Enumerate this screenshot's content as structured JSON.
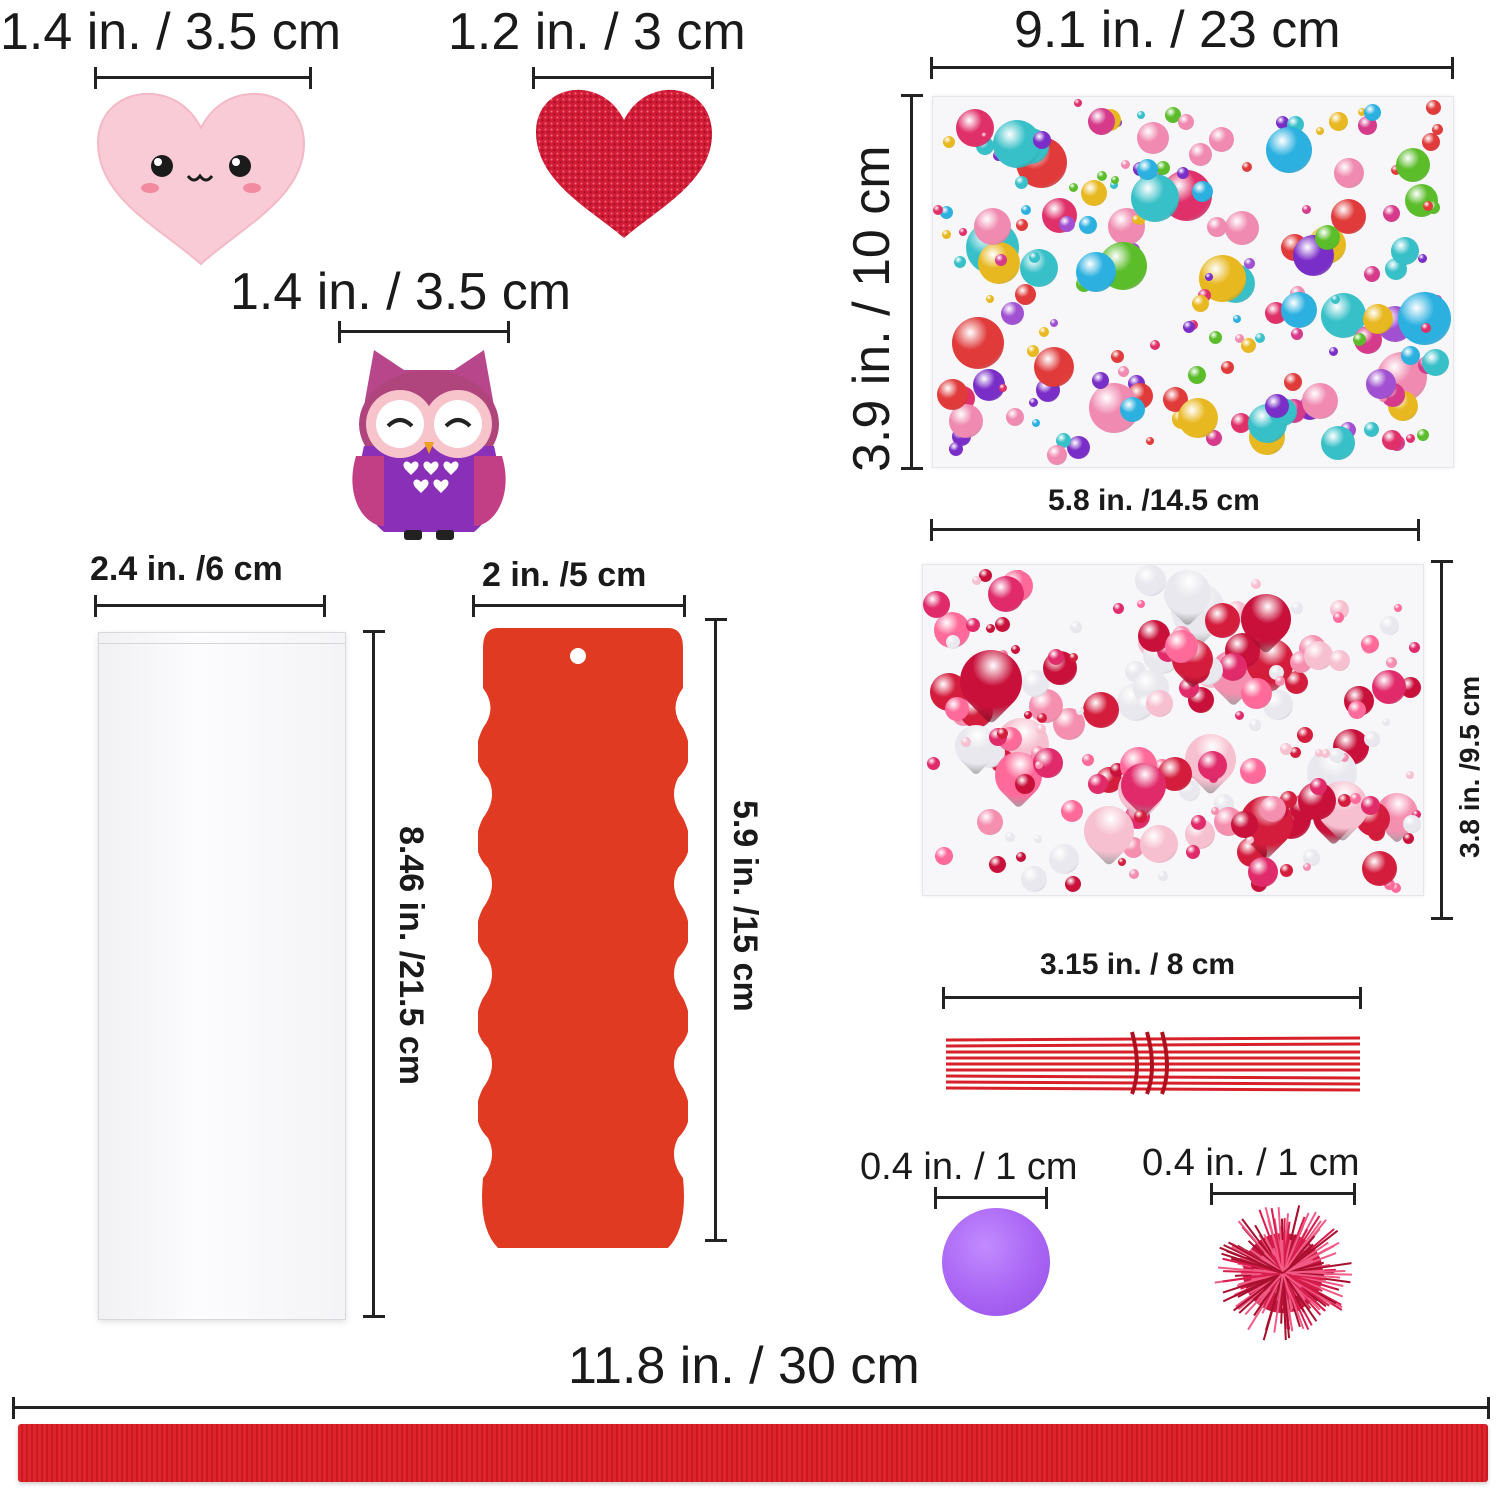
{
  "dimensions": {
    "pink_heart": "1.4 in. / 3.5 cm",
    "red_heart": "1.2 in. / 3 cm",
    "owl": "1.4 in. / 3.5 cm",
    "gem_sheet_large_width": "9.1 in. / 23 cm",
    "gem_sheet_large_height": "3.9 in. / 10 cm",
    "heart_gem_sheet_width": "5.8 in. /14.5 cm",
    "heart_gem_sheet_height": "3.8 in. /9.5 cm",
    "bag_width": "2.4 in. /6 cm",
    "bag_height": "8.46 in. /21.5 cm",
    "bookmark_width": "2 in. /5 cm",
    "bookmark_height": "5.9 in. /15 cm",
    "twist_ties": "3.15 in. / 8 cm",
    "sequin": "0.4 in. / 1 cm",
    "pompom": "0.4 in. / 1 cm",
    "ribbon": "11.8 in. / 30 cm"
  },
  "colors": {
    "pink_heart": "#f9cbd6",
    "red_heart": "#d81e3a",
    "owl_body": "#8a2fb8",
    "owl_head": "#b0457e",
    "bookmark": "#e03a22",
    "ribbon": "#e0242c",
    "twist_ties": "#d8202a",
    "sequin": "#a964f4",
    "pompom": "#d81c4c"
  },
  "icons": {
    "pink_heart": "kawaii-heart-icon",
    "owl": "owl-icon"
  }
}
